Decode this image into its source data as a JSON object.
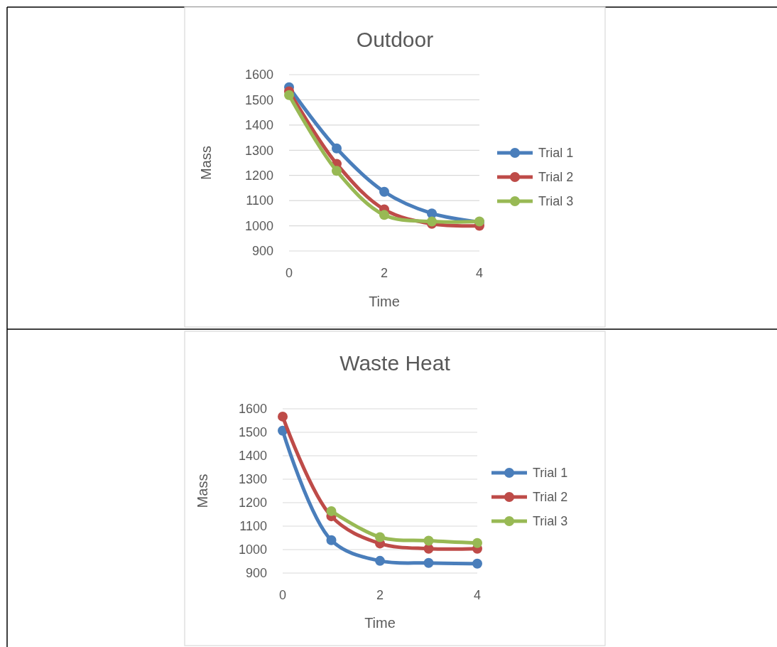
{
  "chart_data": [
    {
      "type": "line",
      "title": "Outdoor",
      "xlabel": "Time",
      "ylabel": "Mass",
      "x": [
        0,
        1,
        2,
        3,
        4
      ],
      "xlim": [
        0,
        4
      ],
      "xticks": [
        0,
        2,
        4
      ],
      "ylim": [
        900,
        1600
      ],
      "yticks": [
        900,
        1000,
        1100,
        1200,
        1300,
        1400,
        1500,
        1600
      ],
      "grid": "y",
      "legend": "right",
      "marker": "circle",
      "series": [
        {
          "name": "Trial 1",
          "color": "#4a7ebb",
          "values": [
            1550,
            1307,
            1135,
            1049,
            1015
          ]
        },
        {
          "name": "Trial 2",
          "color": "#be4b48",
          "values": [
            1534,
            1246,
            1065,
            1008,
            1000
          ]
        },
        {
          "name": "Trial 3",
          "color": "#98b954",
          "values": [
            1519,
            1218,
            1043,
            1017,
            1017
          ]
        }
      ]
    },
    {
      "type": "line",
      "title": "Waste Heat",
      "xlabel": "Time",
      "ylabel": "Mass",
      "x": [
        0,
        1,
        2,
        3,
        4
      ],
      "xlim": [
        0,
        4
      ],
      "xticks": [
        0,
        2,
        4
      ],
      "ylim": [
        900,
        1600
      ],
      "yticks": [
        900,
        1000,
        1100,
        1200,
        1300,
        1400,
        1500,
        1600
      ],
      "grid": "y",
      "legend": "right",
      "marker": "circle",
      "series": [
        {
          "name": "Trial 1",
          "color": "#4a7ebb",
          "values": [
            1507,
            1040,
            952,
            943,
            940
          ]
        },
        {
          "name": "Trial 2",
          "color": "#be4b48",
          "values": [
            1567,
            1142,
            1026,
            1004,
            1004
          ]
        },
        {
          "name": "Trial 3",
          "color": "#98b954",
          "values": [
            null,
            1164,
            1053,
            1038,
            1028
          ]
        }
      ]
    }
  ]
}
